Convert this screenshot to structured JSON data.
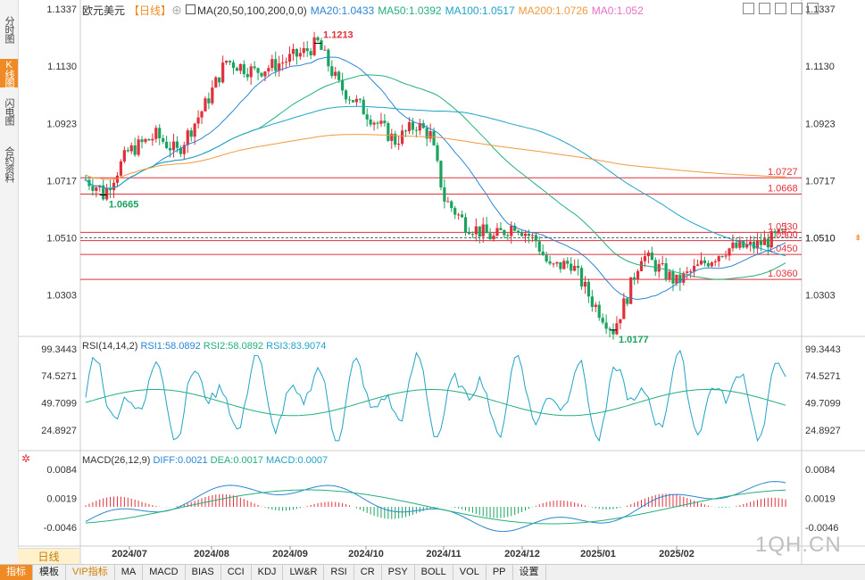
{
  "sidebar": {
    "tabs": [
      {
        "label": "分时图",
        "active": false
      },
      {
        "label": "K线图",
        "active": true
      },
      {
        "label": "闪电图",
        "active": false
      },
      {
        "label": "合约资料",
        "active": false
      }
    ]
  },
  "header": {
    "symbol": "欧元美元",
    "period": "【日线】",
    "ma_label": "MA(20,50,100,200,0,0)",
    "ma_values": [
      {
        "text": "MA20:1.0433",
        "color": "#2a86d6"
      },
      {
        "text": "MA50:1.0392",
        "color": "#22b07d"
      },
      {
        "text": "MA100:1.0517",
        "color": "#1fa3c8"
      },
      {
        "text": "MA200:1.0726",
        "color": "#f09a3e"
      },
      {
        "text": "MA0:1.052",
        "color": "#e86fc4"
      }
    ]
  },
  "rsi_header": {
    "label": "RSI(14,14,2)",
    "values": [
      {
        "text": "RSI1:58.0892",
        "color": "#2a86d6"
      },
      {
        "text": "RSI2:58.0892",
        "color": "#22b07d"
      },
      {
        "text": "RSI3:83.9074",
        "color": "#1fa3c8"
      }
    ]
  },
  "macd_header": {
    "label": "MACD(26,12,9)",
    "values": [
      {
        "text": "DIFF:0.0021",
        "color": "#2a86d6"
      },
      {
        "text": "DEA:0.0017",
        "color": "#22b07d"
      },
      {
        "text": "MACD:0.0007",
        "color": "#1fa3c8"
      }
    ]
  },
  "chart_data": [
    {
      "type": "candlestick",
      "ylim": [
        1.017,
        1.1337
      ],
      "yticks": [
        "1.1337",
        "1.1130",
        "1.0923",
        "1.0717",
        "1.0510",
        "1.0303"
      ],
      "x_labels": [
        "2024/07",
        "2024/08",
        "2024/09",
        "2024/10",
        "2024/11",
        "2024/12",
        "2025/01",
        "2025/02"
      ],
      "annotations": [
        {
          "text": "1.1213",
          "value": 1.1213,
          "type": "high",
          "color": "#e0303a"
        },
        {
          "text": "1.0665",
          "value": 1.0665,
          "type": "low",
          "color": "#19a35e"
        },
        {
          "text": "1.0177",
          "value": 1.0177,
          "type": "low",
          "color": "#19a35e"
        }
      ],
      "levels": [
        {
          "text": "1.0727",
          "value": 1.0727
        },
        {
          "text": "1.0668",
          "value": 1.0668
        },
        {
          "text": "1.0530",
          "value": 1.053
        },
        {
          "text": "1.0500",
          "value": 1.05
        },
        {
          "text": "1.0450",
          "value": 1.045
        },
        {
          "text": "1.0360",
          "value": 1.036
        }
      ],
      "current_price": "1.0510",
      "candle_colors": {
        "up": "#e0303a",
        "down": "#19a35e"
      }
    },
    {
      "type": "line",
      "name": "RSI",
      "ylim": [
        10,
        100
      ],
      "yticks": [
        "99.3443",
        "74.5271",
        "49.7099",
        "24.8927"
      ]
    },
    {
      "type": "bar",
      "name": "MACD",
      "ylim": [
        -0.0088,
        0.01
      ],
      "yticks": [
        "0.0084",
        "0.0019",
        "-0.0046"
      ]
    }
  ],
  "toolbar_icons": [
    "grid-icon",
    "zoom-in-icon",
    "zoom-out-icon",
    "settings-icon",
    "fullscreen-icon"
  ],
  "day_tab": "日线",
  "bottom_tabs": [
    {
      "label": "指标",
      "active": true
    },
    {
      "label": "模板",
      "active": false
    },
    {
      "label": "VIP指标",
      "active": false,
      "vip": true
    },
    {
      "label": "MA"
    },
    {
      "label": "MACD"
    },
    {
      "label": "BIAS"
    },
    {
      "label": "CCI"
    },
    {
      "label": "KDJ"
    },
    {
      "label": "LW&R"
    },
    {
      "label": "RSI"
    },
    {
      "label": "CR"
    },
    {
      "label": "PSY"
    },
    {
      "label": "BOLL"
    },
    {
      "label": "VOL"
    },
    {
      "label": "PP"
    },
    {
      "label": "设置"
    }
  ],
  "watermark": "1QH.CN"
}
